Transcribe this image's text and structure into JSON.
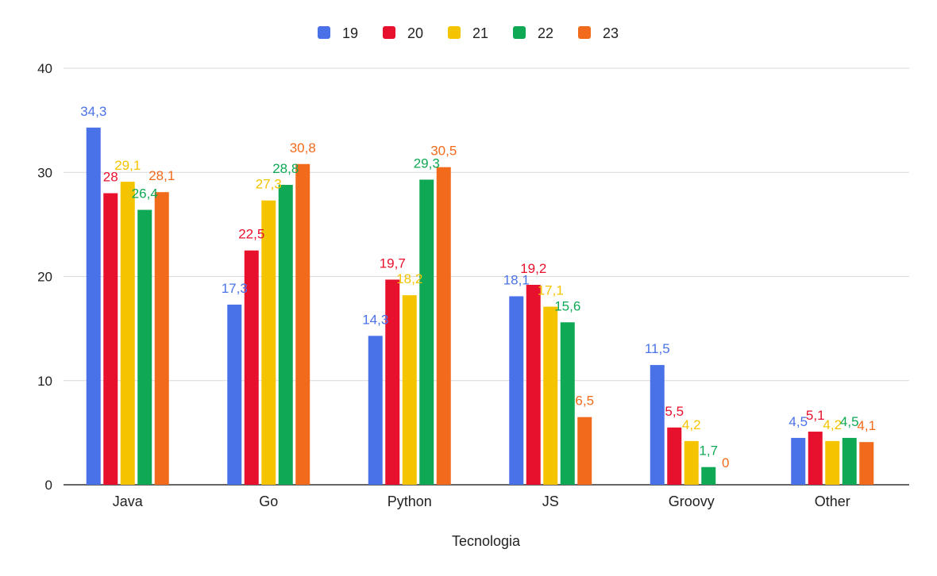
{
  "chart_data": {
    "type": "bar",
    "title": "",
    "xlabel": "Tecnologia",
    "ylabel": "",
    "categories": [
      "Java",
      "Go",
      "Python",
      "JS",
      "Groovy",
      "Other"
    ],
    "ylim": [
      0,
      40
    ],
    "yticks": [
      0,
      10,
      20,
      30,
      40
    ],
    "grid": true,
    "legend_position": "top-center",
    "series": [
      {
        "name": "19",
        "color": "#4a72e8",
        "values": [
          34.3,
          17.3,
          14.3,
          18.1,
          11.5,
          4.5
        ],
        "labels": [
          "34,3",
          "17,3",
          "14,3",
          "18,1",
          "11,5",
          "4,5"
        ]
      },
      {
        "name": "20",
        "color": "#e8112d",
        "values": [
          28,
          22.5,
          19.7,
          19.2,
          5.5,
          5.1
        ],
        "labels": [
          "28",
          "22,5",
          "19,7",
          "19,2",
          "5,5",
          "5,1"
        ]
      },
      {
        "name": "21",
        "color": "#f5c400",
        "values": [
          29.1,
          27.3,
          18.2,
          17.1,
          4.2,
          4.2
        ],
        "labels": [
          "29,1",
          "27,3",
          "18,2",
          "17,1",
          "4,2",
          "4,2"
        ]
      },
      {
        "name": "22",
        "color": "#0fa855",
        "values": [
          26.4,
          28.8,
          29.3,
          15.6,
          1.7,
          4.5
        ],
        "labels": [
          "26,4",
          "28,8",
          "29,3",
          "15,6",
          "1,7",
          "4,5"
        ]
      },
      {
        "name": "23",
        "color": "#f26a1b",
        "values": [
          28.1,
          30.8,
          30.5,
          6.5,
          0,
          4.1
        ],
        "labels": [
          "28,1",
          "30,8",
          "30,5",
          "6,5",
          "0",
          "4,1"
        ]
      }
    ]
  }
}
